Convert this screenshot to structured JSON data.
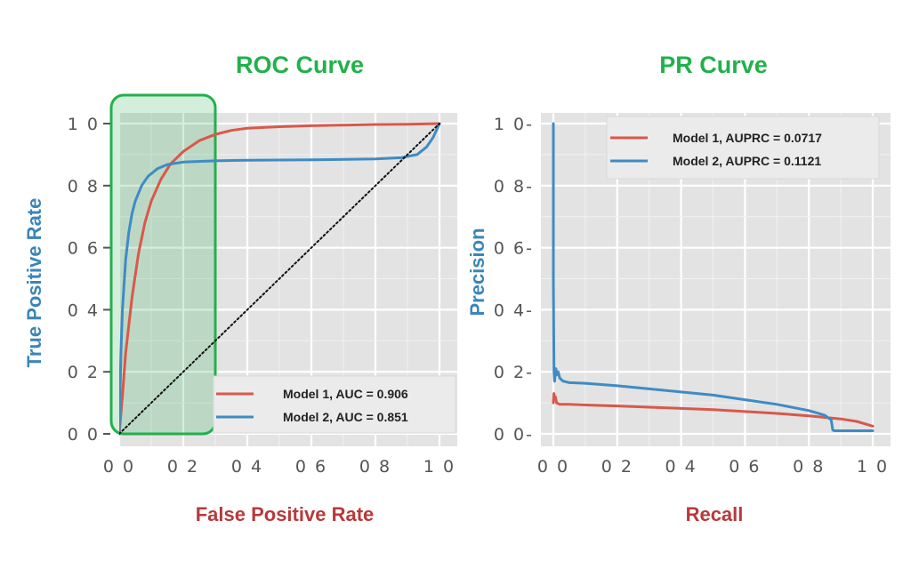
{
  "chart_data": [
    {
      "type": "line",
      "title": "ROC Curve",
      "xlabel": "False Positive Rate",
      "ylabel": "True Positive Rate",
      "xlim": [
        0,
        1
      ],
      "ylim": [
        0,
        1
      ],
      "x_ticks": [
        0.0,
        0.2,
        0.4,
        0.6,
        0.8,
        1.0
      ],
      "y_ticks": [
        0.0,
        0.2,
        0.4,
        0.6,
        0.8,
        1.0
      ],
      "x_tick_labels": [
        "0 0",
        "0 2",
        "0 4",
        "0 6",
        "0 8",
        "1 0"
      ],
      "y_tick_labels": [
        "0 0",
        "0 2",
        "0 4",
        "0 6",
        "0 8",
        "1 0"
      ],
      "grid": true,
      "legend_position": "bottom-right",
      "series": [
        {
          "name": "Model 1, AUC = 0.906",
          "color": "#d9584a",
          "x": [
            0.0,
            0.01,
            0.02,
            0.04,
            0.06,
            0.08,
            0.1,
            0.13,
            0.16,
            0.2,
            0.25,
            0.3,
            0.35,
            0.4,
            0.5,
            0.6,
            0.7,
            0.8,
            0.9,
            0.97,
            1.0
          ],
          "y": [
            0.0,
            0.12,
            0.26,
            0.44,
            0.58,
            0.68,
            0.75,
            0.82,
            0.87,
            0.91,
            0.945,
            0.965,
            0.978,
            0.985,
            0.99,
            0.993,
            0.995,
            0.997,
            0.998,
            0.999,
            1.0
          ]
        },
        {
          "name": "Model 2, AUC = 0.851",
          "color": "#3f8bc4",
          "x": [
            0.0,
            0.005,
            0.01,
            0.02,
            0.03,
            0.04,
            0.05,
            0.07,
            0.09,
            0.12,
            0.15,
            0.2,
            0.3,
            0.4,
            0.6,
            0.8,
            0.88,
            0.93,
            0.96,
            0.98,
            1.0
          ],
          "y": [
            0.0,
            0.25,
            0.4,
            0.56,
            0.65,
            0.71,
            0.75,
            0.8,
            0.83,
            0.855,
            0.868,
            0.876,
            0.88,
            0.882,
            0.883,
            0.886,
            0.89,
            0.9,
            0.925,
            0.955,
            1.0
          ]
        },
        {
          "name": "baseline",
          "color": "#111111",
          "x": [
            0.0,
            1.0
          ],
          "y": [
            0.0,
            1.0
          ]
        }
      ],
      "highlight_region": {
        "x": [
          0.0,
          0.3
        ],
        "y": [
          0.0,
          1.0
        ],
        "color": "#21b14b"
      }
    },
    {
      "type": "line",
      "title": "PR Curve",
      "xlabel": "Recall",
      "ylabel": "Precision",
      "xlim": [
        0,
        1
      ],
      "ylim": [
        0,
        1
      ],
      "x_ticks": [
        0.0,
        0.2,
        0.4,
        0.6,
        0.8,
        1.0
      ],
      "y_ticks": [
        0.0,
        0.2,
        0.4,
        0.6,
        0.8,
        1.0
      ],
      "x_tick_labels": [
        "0 0",
        "0 2",
        "0 4",
        "0 6",
        "0 8",
        "1 0"
      ],
      "y_tick_labels": [
        "0 0-",
        "0 2-",
        "0 4-",
        "0 6-",
        "0 8-",
        "1 0-"
      ],
      "grid": true,
      "legend_position": "top-right",
      "series": [
        {
          "name": "Model 1, AUPRC = 0.0717",
          "color": "#d9584a",
          "x": [
            0.0,
            0.002,
            0.004,
            0.006,
            0.01,
            0.02,
            0.05,
            0.1,
            0.2,
            0.3,
            0.4,
            0.5,
            0.6,
            0.7,
            0.8,
            0.9,
            0.95,
            1.0
          ],
          "y": [
            0.1,
            0.13,
            0.11,
            0.12,
            0.1,
            0.095,
            0.095,
            0.093,
            0.09,
            0.086,
            0.082,
            0.078,
            0.072,
            0.066,
            0.058,
            0.048,
            0.04,
            0.025
          ]
        },
        {
          "name": "Model 2, AUPRC = 0.1121",
          "color": "#3f8bc4",
          "x": [
            0.0,
            0.0,
            0.002,
            0.004,
            0.006,
            0.008,
            0.01,
            0.015,
            0.02,
            0.03,
            0.05,
            0.1,
            0.2,
            0.3,
            0.4,
            0.5,
            0.6,
            0.7,
            0.8,
            0.85,
            0.87,
            0.875,
            0.88,
            0.95,
            1.0
          ],
          "y": [
            1.0,
            0.5,
            0.2,
            0.17,
            0.2,
            0.21,
            0.19,
            0.2,
            0.18,
            0.17,
            0.165,
            0.163,
            0.155,
            0.145,
            0.135,
            0.125,
            0.11,
            0.095,
            0.075,
            0.06,
            0.045,
            0.012,
            0.01,
            0.01,
            0.01
          ]
        }
      ]
    }
  ]
}
